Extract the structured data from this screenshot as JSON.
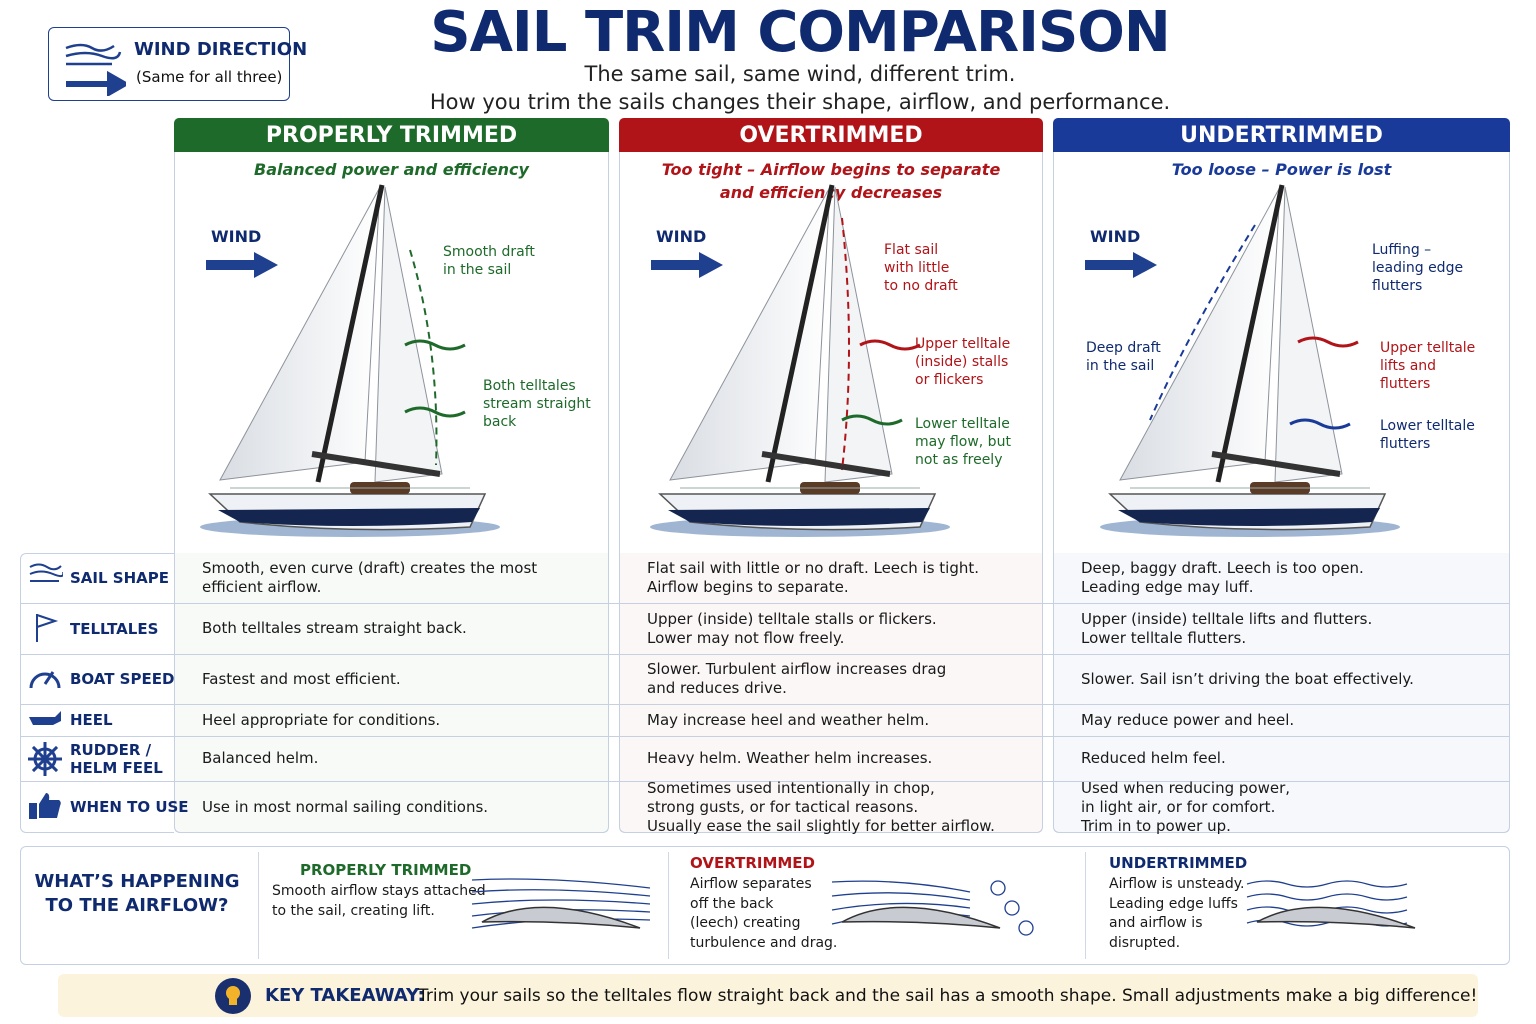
{
  "header": {
    "title": "SAIL TRIM COMPARISON",
    "subtitle": [
      "The same sail, same wind, different trim.",
      "How you trim the sails changes their shape, airflow, and performance."
    ]
  },
  "wind_box": {
    "title": "WIND DIRECTION",
    "note": "(Same for all three)"
  },
  "columns": [
    {
      "title": "PROPERLY TRIMMED",
      "subtitle": [
        "Balanced power and efficiency"
      ],
      "wind": "WIND",
      "callouts": [
        [
          "Smooth draft",
          "in the sail"
        ],
        [
          "Both telltales",
          "stream straight",
          "back"
        ]
      ]
    },
    {
      "title": "OVERTRIMMED",
      "subtitle": [
        "Too tight – Airflow begins to separate",
        "and efficiency decreases"
      ],
      "wind": "WIND",
      "callouts": [
        [
          "Flat sail",
          "with little",
          "to no draft"
        ],
        [
          "Upper telltale",
          "(inside) stalls",
          "or flickers"
        ],
        [
          "Lower telltale",
          "may flow, but",
          "not as freely"
        ]
      ]
    },
    {
      "title": "UNDERTRIMMED",
      "subtitle": [
        "Too loose – Power is lost"
      ],
      "wind": "WIND",
      "callouts": [
        [
          "Luffing –",
          "leading edge",
          "flutters"
        ],
        [
          "Deep draft",
          "in the sail"
        ],
        [
          "Upper telltale",
          "lifts and",
          "flutters"
        ],
        [
          "Lower telltale",
          "flutters"
        ]
      ]
    }
  ],
  "table": {
    "rows": [
      {
        "label": [
          "SAIL SHAPE"
        ],
        "cells": [
          [
            "Smooth, even curve (draft) creates the most",
            "efficient airflow."
          ],
          [
            "Flat sail with little or no draft. Leech is tight.",
            "Airflow begins to separate."
          ],
          [
            "Deep, baggy draft. Leech is too open.",
            "Leading edge may luff."
          ]
        ]
      },
      {
        "label": [
          "TELLTALES"
        ],
        "cells": [
          [
            "Both telltales stream straight back."
          ],
          [
            "Upper (inside) telltale stalls or flickers.",
            "Lower may not flow freely."
          ],
          [
            "Upper (inside) telltale lifts and flutters.",
            "Lower telltale flutters."
          ]
        ]
      },
      {
        "label": [
          "BOAT SPEED"
        ],
        "cells": [
          [
            "Fastest and most efficient."
          ],
          [
            "Slower. Turbulent airflow increases drag",
            "and reduces drive."
          ],
          [
            "Slower. Sail isn’t driving the boat effectively."
          ]
        ]
      },
      {
        "label": [
          "HEEL"
        ],
        "cells": [
          [
            "Heel appropriate for conditions."
          ],
          [
            "May increase heel and weather helm."
          ],
          [
            "May reduce power and heel."
          ]
        ]
      },
      {
        "label": [
          "RUDDER /",
          "HELM FEEL"
        ],
        "cells": [
          [
            "Balanced helm."
          ],
          [
            "Heavy helm. Weather helm increases."
          ],
          [
            "Reduced helm feel."
          ]
        ]
      },
      {
        "label": [
          "WHEN TO USE"
        ],
        "cells": [
          [
            "Use in most normal sailing conditions."
          ],
          [
            "Sometimes used intentionally in chop,",
            "strong gusts, or for tactical reasons.",
            "Usually ease the sail slightly for better airflow."
          ],
          [
            "Used when reducing power,",
            "in light air, or for comfort.",
            "Trim in to power up."
          ]
        ]
      }
    ]
  },
  "airflow": {
    "title": [
      "WHAT’S HAPPENING",
      "TO THE AIRFLOW?"
    ],
    "panels": [
      {
        "title": "PROPERLY TRIMMED",
        "lines": [
          "Smooth airflow stays attached",
          "to the sail, creating lift."
        ]
      },
      {
        "title": "OVERTRIMMED",
        "lines": [
          "Airflow separates",
          "off the back",
          "(leech) creating",
          "turbulence and drag."
        ]
      },
      {
        "title": "UNDERTRIMMED",
        "lines": [
          "Airflow is unsteady.",
          "Leading edge luffs",
          "and airflow is",
          "disrupted."
        ]
      }
    ]
  },
  "takeaway": {
    "label": "KEY TAKEAWAY:",
    "text": "Trim your sails so the telltales flow straight back and the sail has a smooth shape.  Small adjustments make a big difference!"
  }
}
